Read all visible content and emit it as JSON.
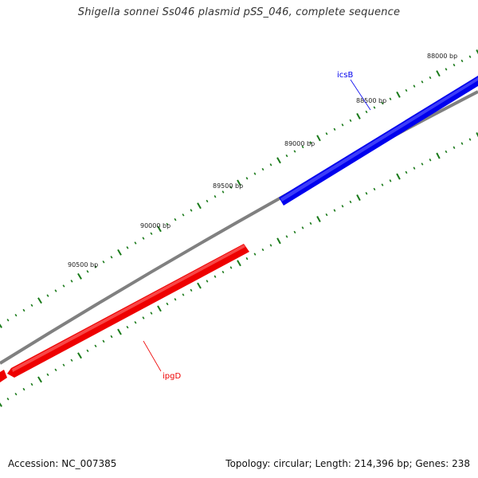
{
  "title": "Shigella sonnei Ss046 plasmid pSS_046, complete sequence",
  "footer": {
    "accession": "Accession: NC_007385",
    "summary": "Topology: circular; Length: 214,396 bp; Genes: 238"
  },
  "colors": {
    "backbone": "#808080",
    "tick": "#1a7a1a",
    "forward_gene": "#0000ee",
    "reverse_gene": "#ee0000"
  },
  "tick_labels": [
    "88000 bp",
    "88500 bp",
    "89000 bp",
    "89500 bp",
    "90000 bp",
    "90500 bp"
  ],
  "genes": [
    {
      "name": "icsB",
      "strand": "forward"
    },
    {
      "name": "ipgD",
      "strand": "reverse"
    }
  ]
}
